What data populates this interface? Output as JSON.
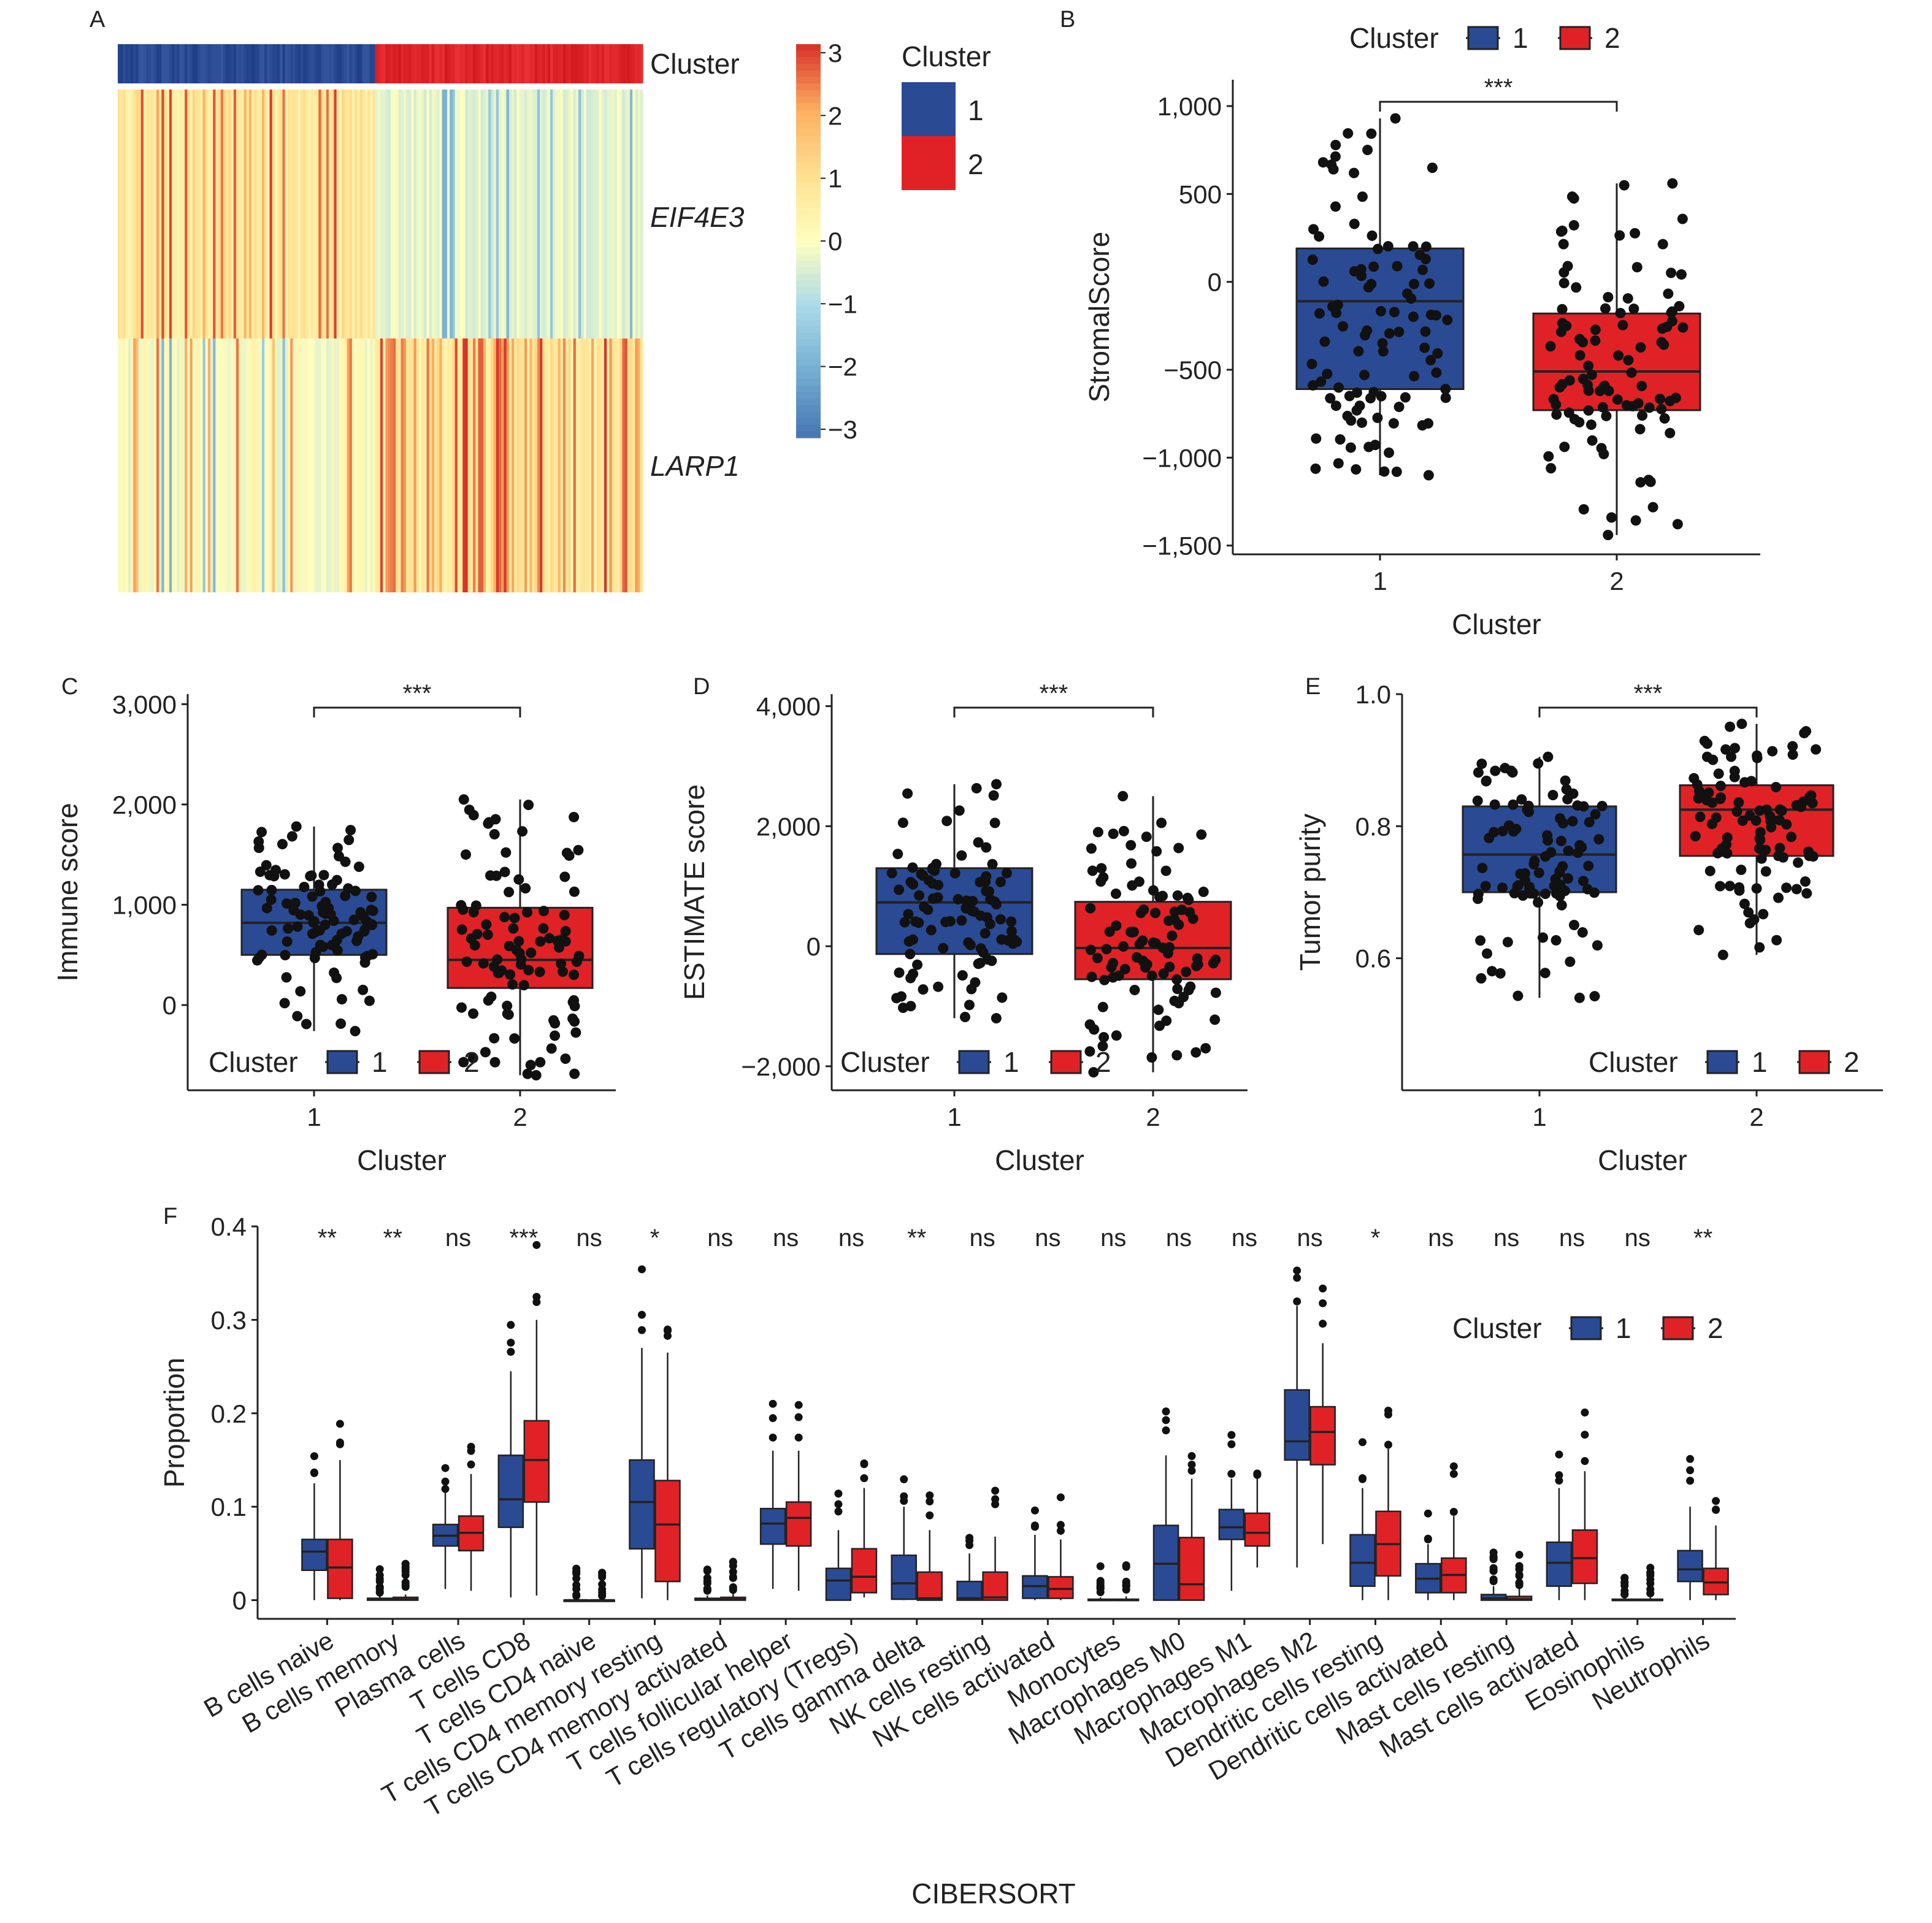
{
  "colors": {
    "cluster1": "#2B4A94",
    "cluster2": "#E02226",
    "point": "#111111",
    "line": "#222222"
  },
  "legend": {
    "title": "Cluster",
    "labels": [
      "1",
      "2"
    ]
  },
  "chart_data": [
    {
      "panel": "A",
      "type": "heatmap",
      "annotation_label": "Cluster",
      "rows": [
        "EIF4E3",
        "LARP1"
      ],
      "groups": [
        "1",
        "2"
      ],
      "group_sizes": [
        100,
        104
      ],
      "colorbar": {
        "min": -3,
        "max": 3,
        "ticks": [
          "3",
          "2",
          "1",
          "0",
          "−1",
          "−2",
          "−3"
        ]
      },
      "legend_title": "Cluster",
      "legend_labels": [
        "1",
        "2"
      ]
    },
    {
      "panel": "B",
      "type": "box",
      "xlabel": "Cluster",
      "ylabel": "StromalScore",
      "categories": [
        "1",
        "2"
      ],
      "ylim": [
        -1550,
        1150
      ],
      "yticks": [
        1000,
        500,
        0,
        -500,
        -1000,
        -1500
      ],
      "ytick_labels": [
        "1,000",
        "500",
        "0",
        "−500",
        "−1,000",
        "−1,500"
      ],
      "boxes": [
        {
          "group": "1",
          "q1": -610,
          "median": -110,
          "q3": 190,
          "whisker_low": -1100,
          "whisker_high": 930
        },
        {
          "group": "2",
          "q1": -730,
          "median": -510,
          "q3": -180,
          "whisker_low": -1440,
          "whisker_high": 560
        }
      ],
      "significance": "***",
      "legend_position": "top"
    },
    {
      "panel": "C",
      "type": "box",
      "xlabel": "Cluster",
      "ylabel": "Immune score",
      "categories": [
        "1",
        "2"
      ],
      "ylim": [
        -850,
        3100
      ],
      "yticks": [
        3000,
        2000,
        1000,
        0
      ],
      "ytick_labels": [
        "3,000",
        "2,000",
        "1,000",
        "0"
      ],
      "boxes": [
        {
          "group": "1",
          "q1": 500,
          "median": 820,
          "q3": 1150,
          "whisker_low": -260,
          "whisker_high": 1780
        },
        {
          "group": "2",
          "q1": 170,
          "median": 450,
          "q3": 970,
          "whisker_low": -700,
          "whisker_high": 2050
        }
      ],
      "significance": "***",
      "legend_position": "bottom-left"
    },
    {
      "panel": "D",
      "type": "box",
      "xlabel": "Cluster",
      "ylabel": "ESTIMATE score",
      "categories": [
        "1",
        "2"
      ],
      "ylim": [
        -2400,
        4200
      ],
      "yticks": [
        4000,
        2000,
        0,
        -2000
      ],
      "ytick_labels": [
        "4,000",
        "2,000",
        "0",
        "−2,000"
      ],
      "boxes": [
        {
          "group": "1",
          "q1": -130,
          "median": 730,
          "q3": 1300,
          "whisker_low": -1200,
          "whisker_high": 2700
        },
        {
          "group": "2",
          "q1": -550,
          "median": -30,
          "q3": 740,
          "whisker_low": -2100,
          "whisker_high": 2500
        }
      ],
      "significance": "***",
      "legend_position": "bottom-left"
    },
    {
      "panel": "E",
      "type": "box",
      "xlabel": "Cluster",
      "ylabel": "Tumor purity",
      "categories": [
        "1",
        "2"
      ],
      "ylim": [
        0.4,
        1.0
      ],
      "yticks": [
        1.0,
        0.8,
        0.6
      ],
      "ytick_labels": [
        "1.0",
        "0.8",
        "0.6"
      ],
      "boxes": [
        {
          "group": "1",
          "q1": 0.7,
          "median": 0.757,
          "q3": 0.83,
          "whisker_low": 0.54,
          "whisker_high": 0.905
        },
        {
          "group": "2",
          "q1": 0.755,
          "median": 0.825,
          "q3": 0.862,
          "whisker_low": 0.605,
          "whisker_high": 0.955
        }
      ],
      "significance": "***",
      "legend_position": "bottom-right"
    },
    {
      "panel": "F",
      "type": "box",
      "xlabel": "CIBERSORT",
      "ylabel": "Proportion",
      "ylim": [
        -0.02,
        0.4
      ],
      "yticks": [
        0.4,
        0.3,
        0.2,
        0.1,
        0
      ],
      "ytick_labels": [
        "0.4",
        "0.3",
        "0.2",
        "0.1",
        "0"
      ],
      "legend_position": "top-right",
      "categories": [
        "B cells naive",
        "B cells memory",
        "Plasma cells",
        "T cells CD8",
        "T cells CD4 naive",
        "T cells CD4 memory resting",
        "T cells CD4 memory activated",
        "T cells follicular helper",
        "T cells regulatory (Tregs)",
        "T cells gamma delta",
        "NK cells resting",
        "NK cells activated",
        "Monocytes",
        "Macrophages M0",
        "Macrophages M1",
        "Macrophages M2",
        "Dendritic cells resting",
        "Dendritic cells activated",
        "Mast cells resting",
        "Mast cells activated",
        "Eosinophils",
        "Neutrophils"
      ],
      "significance": [
        "**",
        "**",
        "ns",
        "***",
        "ns",
        "*",
        "ns",
        "ns",
        "ns",
        "**",
        "ns",
        "ns",
        "ns",
        "ns",
        "ns",
        "ns",
        "*",
        "ns",
        "ns",
        "ns",
        "ns",
        "**"
      ],
      "series": [
        {
          "name": "1",
          "boxes": [
            [
              0,
              0.032,
              0.052,
              0.065,
              0.125
            ],
            [
              0,
              0,
              0.001,
              0.002,
              0.004
            ],
            [
              0.012,
              0.058,
              0.069,
              0.081,
              0.115
            ],
            [
              0.003,
              0.078,
              0.108,
              0.155,
              0.245
            ],
            [
              0,
              0,
              0,
              0,
              0
            ],
            [
              0.002,
              0.055,
              0.105,
              0.15,
              0.27
            ],
            [
              0,
              0,
              0.001,
              0.002,
              0.005
            ],
            [
              0.012,
              0.06,
              0.082,
              0.098,
              0.16
            ],
            [
              0,
              0,
              0.021,
              0.034,
              0.075
            ],
            [
              0,
              0.001,
              0.018,
              0.048,
              0.1
            ],
            [
              0,
              0,
              0.002,
              0.02,
              0.05
            ],
            [
              0,
              0.002,
              0.015,
              0.026,
              0.07
            ],
            [
              0,
              0,
              0,
              0.001,
              0.003
            ],
            [
              0,
              0,
              0.039,
              0.08,
              0.155
            ],
            [
              0.01,
              0.065,
              0.078,
              0.097,
              0.13
            ],
            [
              0.035,
              0.15,
              0.17,
              0.225,
              0.315
            ],
            [
              0,
              0.015,
              0.04,
              0.07,
              0.12
            ],
            [
              0,
              0.008,
              0.023,
              0.039,
              0.06
            ],
            [
              0,
              0,
              0.002,
              0.006,
              0.015
            ],
            [
              0,
              0.015,
              0.04,
              0.062,
              0.12
            ],
            [
              0,
              0,
              0,
              0.001,
              0.002
            ],
            [
              0,
              0.02,
              0.033,
              0.053,
              0.1
            ]
          ]
        },
        {
          "name": "2",
          "boxes": [
            [
              0,
              0.002,
              0.035,
              0.065,
              0.15
            ],
            [
              0,
              0,
              0.001,
              0.003,
              0.006
            ],
            [
              0.01,
              0.053,
              0.072,
              0.09,
              0.135
            ],
            [
              0.005,
              0.105,
              0.15,
              0.192,
              0.3
            ],
            [
              0,
              0,
              0,
              0,
              0
            ],
            [
              0,
              0.02,
              0.081,
              0.128,
              0.265
            ],
            [
              0,
              0,
              0.001,
              0.003,
              0.007
            ],
            [
              0.01,
              0.058,
              0.088,
              0.105,
              0.16
            ],
            [
              0.003,
              0.008,
              0.025,
              0.055,
              0.12
            ],
            [
              0,
              0,
              0.002,
              0.03,
              0.075
            ],
            [
              0,
              0,
              0.003,
              0.03,
              0.068
            ],
            [
              0,
              0.002,
              0.012,
              0.025,
              0.065
            ],
            [
              0,
              0,
              0,
              0.001,
              0.004
            ],
            [
              0,
              0,
              0.017,
              0.067,
              0.13
            ],
            [
              0.035,
              0.058,
              0.072,
              0.093,
              0.13
            ],
            [
              0.06,
              0.145,
              0.18,
              0.207,
              0.275
            ],
            [
              0,
              0.026,
              0.06,
              0.095,
              0.162
            ],
            [
              0,
              0.008,
              0.027,
              0.045,
              0.09
            ],
            [
              0,
              0,
              0.001,
              0.004,
              0.012
            ],
            [
              0,
              0.018,
              0.045,
              0.075,
              0.138
            ],
            [
              0,
              0,
              0,
              0.001,
              0.003
            ],
            [
              0,
              0.006,
              0.019,
              0.034,
              0.08
            ]
          ]
        }
      ]
    }
  ]
}
